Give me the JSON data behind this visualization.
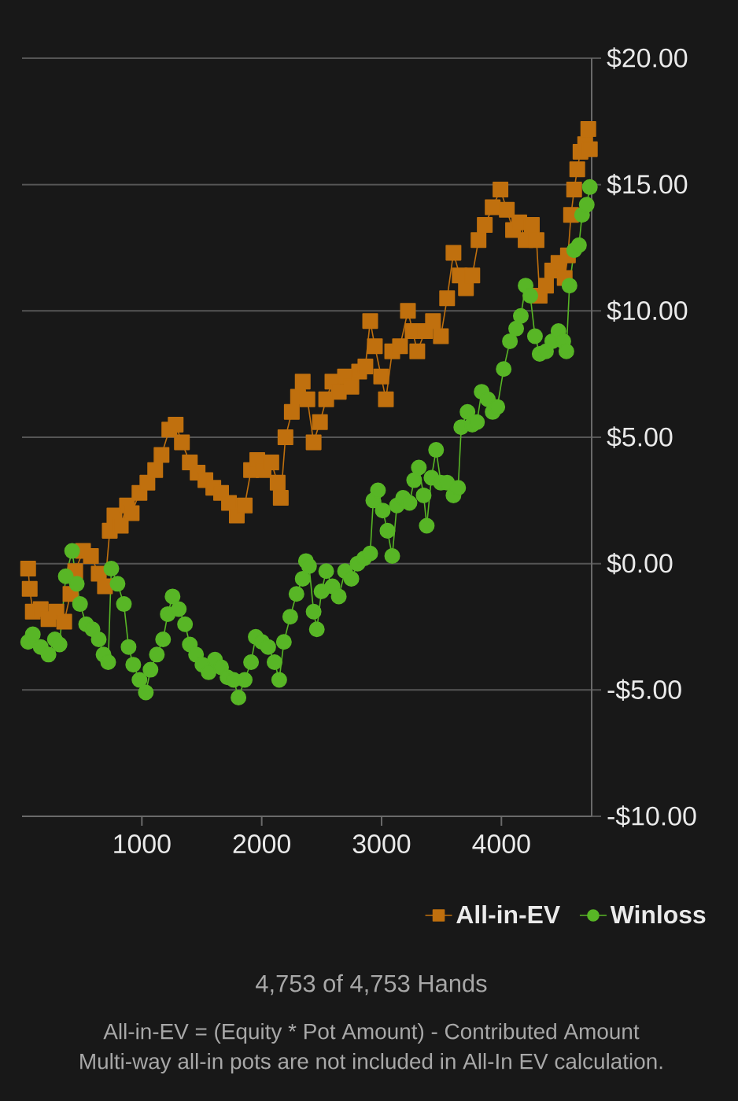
{
  "chart_data": {
    "type": "line",
    "series": [
      {
        "name": "All-in-EV",
        "color": "#c0700e",
        "marker": "square",
        "x": [
          51,
          64,
          90,
          156,
          221,
          287,
          352,
          404,
          444,
          509,
          575,
          640,
          692,
          732,
          771,
          824,
          876,
          915,
          980,
          1046,
          1111,
          1164,
          1229,
          1282,
          1334,
          1400,
          1465,
          1530,
          1596,
          1661,
          1727,
          1792,
          1858,
          1911,
          1963,
          2015,
          2080,
          2133,
          2159,
          2198,
          2251,
          2303,
          2342,
          2381,
          2433,
          2486,
          2538,
          2590,
          2643,
          2695,
          2748,
          2813,
          2865,
          2905,
          2944,
          2997,
          3036,
          3089,
          3154,
          3220,
          3259,
          3298,
          3364,
          3429,
          3495,
          3547,
          3600,
          3652,
          3704,
          3757,
          3809,
          3861,
          3927,
          3992,
          4045,
          4097,
          4149,
          4202,
          4254,
          4293,
          4319,
          4372,
          4424,
          4476,
          4528,
          4555,
          4581,
          4607,
          4633,
          4660,
          4699,
          4725,
          4738
        ],
        "values": [
          -0.2,
          -1.0,
          -1.9,
          -1.8,
          -2.2,
          -1.9,
          -2.3,
          -1.2,
          -0.3,
          0.5,
          0.3,
          -0.4,
          -0.9,
          1.3,
          1.9,
          1.5,
          2.3,
          2.0,
          2.8,
          3.2,
          3.7,
          4.3,
          5.3,
          5.5,
          4.8,
          4.0,
          3.6,
          3.3,
          3.0,
          2.8,
          2.4,
          1.9,
          2.3,
          3.7,
          4.1,
          3.7,
          4.0,
          3.2,
          2.6,
          5.0,
          6.0,
          6.6,
          7.2,
          6.5,
          4.8,
          5.6,
          6.5,
          7.2,
          6.8,
          7.4,
          7.0,
          7.6,
          7.8,
          9.6,
          8.6,
          7.4,
          6.5,
          8.4,
          8.6,
          10.0,
          9.2,
          8.4,
          9.2,
          9.6,
          9.0,
          10.5,
          12.3,
          11.4,
          10.9,
          11.4,
          12.8,
          13.4,
          14.1,
          14.8,
          14.0,
          13.2,
          13.5,
          12.8,
          13.4,
          12.8,
          10.6,
          11.0,
          11.6,
          11.9,
          11.3,
          12.2,
          13.8,
          14.8,
          15.6,
          16.3,
          16.6,
          17.2,
          16.4
        ]
      },
      {
        "name": "Winloss",
        "color": "#58b626",
        "marker": "circle",
        "x": [
          51,
          90,
          156,
          221,
          274,
          313,
          365,
          418,
          457,
          484,
          535,
          588,
          640,
          680,
          719,
          745,
          797,
          850,
          889,
          928,
          980,
          1033,
          1072,
          1125,
          1177,
          1216,
          1256,
          1308,
          1360,
          1400,
          1452,
          1505,
          1557,
          1610,
          1661,
          1714,
          1766,
          1806,
          1858,
          1911,
          1950,
          2002,
          2054,
          2107,
          2146,
          2185,
          2238,
          2290,
          2342,
          2369,
          2395,
          2433,
          2460,
          2499,
          2538,
          2590,
          2643,
          2695,
          2748,
          2800,
          2853,
          2905,
          2931,
          2970,
          3010,
          3049,
          3089,
          3128,
          3180,
          3233,
          3272,
          3311,
          3351,
          3377,
          3416,
          3455,
          3495,
          3547,
          3600,
          3639,
          3665,
          3717,
          3757,
          3796,
          3835,
          3887,
          3927,
          3966,
          4019,
          4071,
          4123,
          4162,
          4202,
          4241,
          4280,
          4319,
          4372,
          4424,
          4476,
          4516,
          4542,
          4568,
          4607,
          4647,
          4673,
          4712,
          4738
        ],
        "values": [
          -3.1,
          -2.8,
          -3.3,
          -3.6,
          -3.0,
          -3.2,
          -0.5,
          0.5,
          -0.8,
          -1.6,
          -2.4,
          -2.6,
          -3.0,
          -3.6,
          -3.9,
          -0.2,
          -0.8,
          -1.6,
          -3.3,
          -4.0,
          -4.6,
          -5.1,
          -4.2,
          -3.6,
          -3.0,
          -2.0,
          -1.3,
          -1.8,
          -2.4,
          -3.2,
          -3.6,
          -4.0,
          -4.3,
          -3.8,
          -4.1,
          -4.5,
          -4.6,
          -5.3,
          -4.6,
          -3.9,
          -2.9,
          -3.1,
          -3.3,
          -3.9,
          -4.6,
          -3.1,
          -2.1,
          -1.2,
          -0.6,
          0.1,
          -0.1,
          -1.9,
          -2.6,
          -1.1,
          -0.3,
          -0.9,
          -1.3,
          -0.3,
          -0.6,
          0.0,
          0.2,
          0.4,
          2.5,
          2.9,
          2.1,
          1.3,
          0.3,
          2.3,
          2.6,
          2.4,
          3.3,
          3.8,
          2.7,
          1.5,
          3.4,
          4.5,
          3.2,
          3.2,
          2.7,
          3.0,
          5.4,
          6.0,
          5.5,
          5.6,
          6.8,
          6.5,
          6.0,
          6.2,
          7.7,
          8.8,
          9.3,
          9.8,
          11.0,
          10.6,
          9.0,
          8.3,
          8.4,
          8.8,
          9.2,
          8.8,
          8.4,
          11.0,
          12.4,
          12.6,
          13.8,
          14.2,
          14.9
        ]
      }
    ],
    "xlim": [
      0,
      4753
    ],
    "xticks": [
      1000,
      2000,
      3000,
      4000
    ],
    "ylim": [
      -10,
      20
    ],
    "yticks": [
      {
        "value": -10,
        "label": "-$10.00"
      },
      {
        "value": -5,
        "label": "-$5.00"
      },
      {
        "value": 0,
        "label": "$0.00"
      },
      {
        "value": 5,
        "label": "$5.00"
      },
      {
        "value": 10,
        "label": "$10.00"
      },
      {
        "value": 15,
        "label": "$15.00"
      },
      {
        "value": 20,
        "label": "$20.00"
      }
    ],
    "grid": "y",
    "legend": "bottom right",
    "annotations": [
      "4,753 of 4,753 Hands",
      "All-in-EV = (Equity * Pot Amount) - Contributed Amount",
      "Multi-way all-in pots are not included in All-In EV calculation."
    ]
  }
}
